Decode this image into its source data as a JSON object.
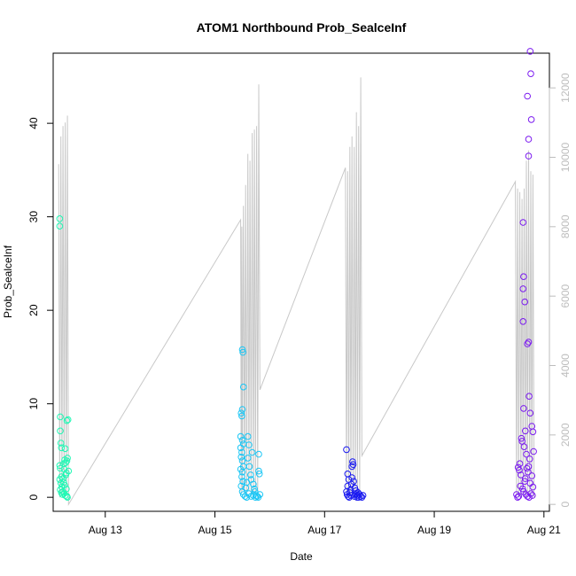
{
  "chart_data": {
    "type": "scatter",
    "title": "ATOM1 Northbound Prob_SealceInf",
    "xlabel": "Date",
    "ylabel": "Prob_SealceInf",
    "x_unit": "days in August",
    "xlim": [
      12.05,
      21.1
    ],
    "ylim": [
      -1.5,
      47.5
    ],
    "y2lim": [
      -200,
      13000
    ],
    "x_ticks": [
      {
        "value": 13,
        "label": "Aug 13"
      },
      {
        "value": 15,
        "label": "Aug 15"
      },
      {
        "value": 17,
        "label": "Aug 17"
      },
      {
        "value": 19,
        "label": "Aug 19"
      },
      {
        "value": 21,
        "label": "Aug 21"
      }
    ],
    "y_ticks": [
      0,
      10,
      20,
      30,
      40
    ],
    "y2_ticks": [
      0,
      2000,
      4000,
      6000,
      8000,
      10000,
      12000
    ],
    "grid": false,
    "legend": "none",
    "point_shape": "open-circle",
    "point_colors": [
      "#1ff8b4",
      "#1ac6f5",
      "#1a1af0",
      "#7b1af0"
    ],
    "line_color": "#c8c8c8",
    "series": [
      {
        "values": [
          [
            12.17,
            29.8
          ],
          [
            12.17,
            29.0
          ],
          [
            12.18,
            8.6
          ],
          [
            12.18,
            7.1
          ],
          [
            12.19,
            5.8
          ],
          [
            12.2,
            5.3
          ],
          [
            12.17,
            3.4
          ],
          [
            12.18,
            3.1
          ],
          [
            12.2,
            2.2
          ],
          [
            12.17,
            1.9
          ],
          [
            12.19,
            1.5
          ],
          [
            12.21,
            1.1
          ],
          [
            12.18,
            0.8
          ],
          [
            12.2,
            0.5
          ],
          [
            12.22,
            0.3
          ],
          [
            12.23,
            2.0
          ],
          [
            12.24,
            1.6
          ],
          [
            12.25,
            3.0
          ],
          [
            12.26,
            4.0
          ],
          [
            12.27,
            5.2
          ],
          [
            12.28,
            3.7
          ],
          [
            12.29,
            2.6
          ],
          [
            12.3,
            8.2
          ],
          [
            12.32,
            8.3
          ],
          [
            12.31,
            4.2
          ],
          [
            12.3,
            3.9
          ],
          [
            12.28,
            2.4
          ],
          [
            12.26,
            1.3
          ],
          [
            12.29,
            0.9
          ],
          [
            12.3,
            0.1
          ],
          [
            12.31,
            0.0
          ],
          [
            12.27,
            0.2
          ],
          [
            12.25,
            0.4
          ],
          [
            12.23,
            0.6
          ],
          [
            12.24,
            3.6
          ],
          [
            12.33,
            2.8
          ]
        ]
      },
      {
        "values": [
          [
            15.5,
            15.8
          ],
          [
            15.51,
            15.5
          ],
          [
            15.52,
            11.8
          ],
          [
            15.5,
            9.4
          ],
          [
            15.48,
            9.0
          ],
          [
            15.49,
            8.7
          ],
          [
            15.47,
            6.5
          ],
          [
            15.5,
            6.1
          ],
          [
            15.52,
            5.7
          ],
          [
            15.47,
            5.3
          ],
          [
            15.49,
            4.8
          ],
          [
            15.48,
            4.3
          ],
          [
            15.5,
            3.9
          ],
          [
            15.52,
            3.3
          ],
          [
            15.47,
            3.0
          ],
          [
            15.5,
            2.7
          ],
          [
            15.49,
            2.2
          ],
          [
            15.51,
            1.7
          ],
          [
            15.48,
            1.2
          ],
          [
            15.5,
            0.6
          ],
          [
            15.52,
            0.3
          ],
          [
            15.55,
            0.1
          ],
          [
            15.58,
            0.0
          ],
          [
            15.6,
            6.5
          ],
          [
            15.62,
            5.6
          ],
          [
            15.6,
            4.2
          ],
          [
            15.63,
            3.3
          ],
          [
            15.65,
            2.4
          ],
          [
            15.66,
            1.9
          ],
          [
            15.68,
            4.8
          ],
          [
            15.7,
            1.4
          ],
          [
            15.72,
            0.9
          ],
          [
            15.73,
            0.6
          ],
          [
            15.75,
            0.2
          ],
          [
            15.77,
            0.1
          ],
          [
            15.79,
            0.0
          ],
          [
            15.8,
            4.6
          ],
          [
            15.8,
            2.8
          ],
          [
            15.81,
            2.5
          ],
          [
            15.82,
            0.3
          ],
          [
            15.62,
            0.4
          ],
          [
            15.66,
            0.1
          ],
          [
            15.7,
            0.2
          ],
          [
            15.74,
            0.0
          ],
          [
            15.56,
            1.0
          ],
          [
            15.58,
            1.6
          ]
        ]
      },
      {
        "values": [
          [
            17.4,
            5.1
          ],
          [
            17.42,
            2.5
          ],
          [
            17.44,
            1.9
          ],
          [
            17.42,
            1.2
          ],
          [
            17.4,
            0.6
          ],
          [
            17.41,
            0.3
          ],
          [
            17.43,
            0.1
          ],
          [
            17.45,
            0.0
          ],
          [
            17.47,
            0.8
          ],
          [
            17.49,
            1.4
          ],
          [
            17.5,
            3.3
          ],
          [
            17.51,
            3.8
          ],
          [
            17.52,
            3.5
          ],
          [
            17.5,
            2.1
          ],
          [
            17.53,
            1.7
          ],
          [
            17.55,
            1.0
          ],
          [
            17.57,
            0.7
          ],
          [
            17.58,
            0.4
          ],
          [
            17.6,
            0.2
          ],
          [
            17.62,
            0.0
          ],
          [
            17.64,
            0.3
          ],
          [
            17.66,
            0.1
          ],
          [
            17.68,
            0.0
          ],
          [
            17.7,
            0.2
          ],
          [
            17.46,
            0.5
          ],
          [
            17.48,
            0.2
          ],
          [
            17.54,
            0.1
          ],
          [
            17.56,
            0.3
          ],
          [
            17.59,
            0.0
          ],
          [
            17.61,
            0.5
          ]
        ]
      },
      {
        "values": [
          [
            20.75,
            47.7
          ],
          [
            20.76,
            45.3
          ],
          [
            20.7,
            42.9
          ],
          [
            20.77,
            40.4
          ],
          [
            20.72,
            38.3
          ],
          [
            20.72,
            36.5
          ],
          [
            20.62,
            29.4
          ],
          [
            20.63,
            23.6
          ],
          [
            20.62,
            22.3
          ],
          [
            20.65,
            20.9
          ],
          [
            20.62,
            18.8
          ],
          [
            20.72,
            16.6
          ],
          [
            20.7,
            16.4
          ],
          [
            20.73,
            10.8
          ],
          [
            20.63,
            9.5
          ],
          [
            20.75,
            9.0
          ],
          [
            20.66,
            7.1
          ],
          [
            20.78,
            7.6
          ],
          [
            20.8,
            7.0
          ],
          [
            20.81,
            4.9
          ],
          [
            20.59,
            6.3
          ],
          [
            20.6,
            6.0
          ],
          [
            20.64,
            5.4
          ],
          [
            20.68,
            4.6
          ],
          [
            20.56,
            3.6
          ],
          [
            20.53,
            3.2
          ],
          [
            20.55,
            2.9
          ],
          [
            20.58,
            2.4
          ],
          [
            20.66,
            2.0
          ],
          [
            20.69,
            3.1
          ],
          [
            20.72,
            3.3
          ],
          [
            20.75,
            1.5
          ],
          [
            20.78,
            2.3
          ],
          [
            20.8,
            1.1
          ],
          [
            20.57,
            1.2
          ],
          [
            20.61,
            0.9
          ],
          [
            20.63,
            0.6
          ],
          [
            20.67,
            0.3
          ],
          [
            20.7,
            0.1
          ],
          [
            20.73,
            0.0
          ],
          [
            20.76,
            0.4
          ],
          [
            20.79,
            0.2
          ],
          [
            20.52,
            0.0
          ],
          [
            20.54,
            0.1
          ],
          [
            20.5,
            0.3
          ],
          [
            20.65,
            1.7
          ],
          [
            20.71,
            2.7
          ],
          [
            20.74,
            4.1
          ]
        ]
      }
    ],
    "line_series": {
      "axis": "right",
      "values": [
        [
          12.15,
          9800
        ],
        [
          12.17,
          200
        ],
        [
          12.19,
          10600
        ],
        [
          12.21,
          300
        ],
        [
          12.23,
          10900
        ],
        [
          12.25,
          400
        ],
        [
          12.27,
          11000
        ],
        [
          12.29,
          300
        ],
        [
          12.31,
          11200
        ],
        [
          12.33,
          0
        ],
        [
          15.47,
          8200
        ],
        [
          15.48,
          300
        ],
        [
          15.49,
          8000
        ],
        [
          15.5,
          400
        ],
        [
          15.52,
          8600
        ],
        [
          15.54,
          300
        ],
        [
          15.56,
          9200
        ],
        [
          15.58,
          200
        ],
        [
          15.6,
          10100
        ],
        [
          15.62,
          400
        ],
        [
          15.64,
          9900
        ],
        [
          15.66,
          300
        ],
        [
          15.68,
          10700
        ],
        [
          15.7,
          200
        ],
        [
          15.72,
          10800
        ],
        [
          15.74,
          300
        ],
        [
          15.76,
          10900
        ],
        [
          15.78,
          200
        ],
        [
          15.8,
          12100
        ],
        [
          15.82,
          3300
        ],
        [
          17.38,
          9700
        ],
        [
          17.4,
          400
        ],
        [
          17.42,
          9600
        ],
        [
          17.44,
          300
        ],
        [
          17.46,
          10300
        ],
        [
          17.48,
          200
        ],
        [
          17.5,
          10600
        ],
        [
          17.52,
          300
        ],
        [
          17.54,
          10300
        ],
        [
          17.56,
          200
        ],
        [
          17.58,
          11300
        ],
        [
          17.6,
          300
        ],
        [
          17.62,
          10900
        ],
        [
          17.64,
          200
        ],
        [
          17.66,
          12300
        ],
        [
          17.68,
          1400
        ],
        [
          20.48,
          9300
        ],
        [
          20.5,
          300
        ],
        [
          20.52,
          9100
        ],
        [
          20.54,
          200
        ],
        [
          20.56,
          9000
        ],
        [
          20.58,
          200
        ],
        [
          20.6,
          8800
        ],
        [
          20.62,
          300
        ],
        [
          20.64,
          9100
        ],
        [
          20.66,
          200
        ],
        [
          20.68,
          9900
        ],
        [
          20.7,
          300
        ],
        [
          20.72,
          10200
        ],
        [
          20.74,
          200
        ],
        [
          20.76,
          9600
        ],
        [
          20.78,
          300
        ],
        [
          20.8,
          9500
        ],
        [
          20.82,
          200
        ]
      ]
    }
  }
}
